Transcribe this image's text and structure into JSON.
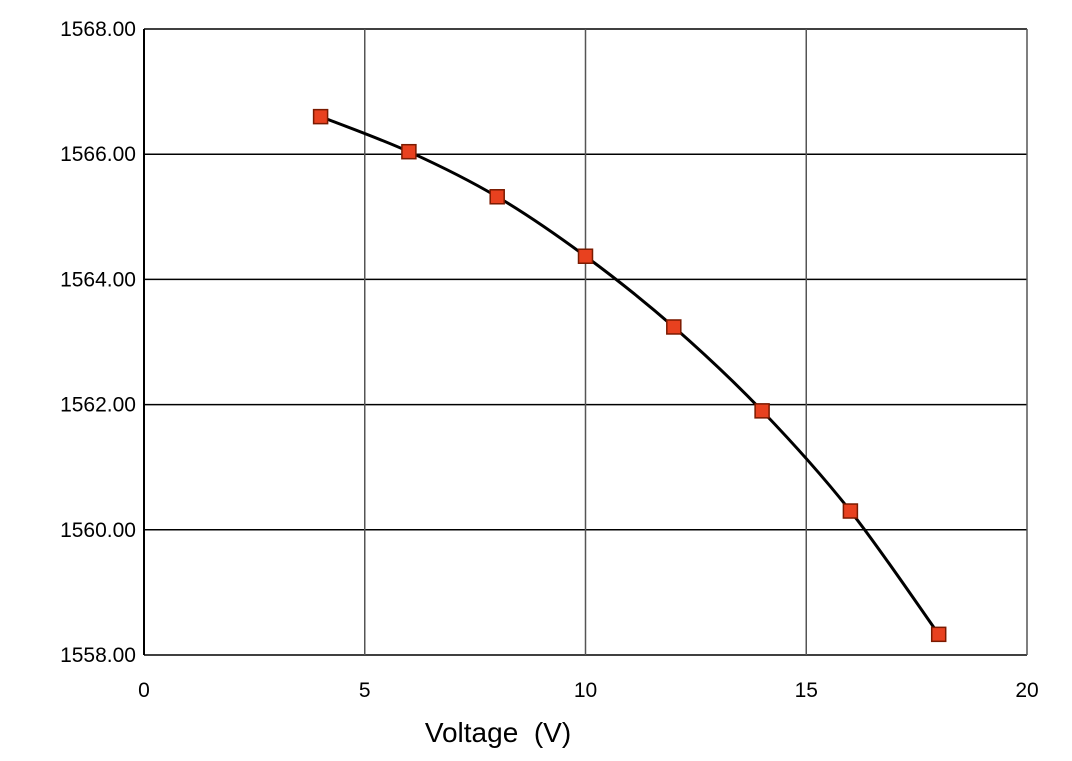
{
  "chart_data": {
    "type": "scatter",
    "title": "",
    "xlabel": "Voltage  (V)",
    "ylabel": "",
    "xlim": [
      0,
      20
    ],
    "ylim": [
      1558,
      1568
    ],
    "x_ticks": [
      0,
      5,
      10,
      15,
      20
    ],
    "y_ticks": [
      1558,
      1560,
      1562,
      1564,
      1566,
      1568
    ],
    "x_tick_labels": [
      "0",
      "5",
      "10",
      "15",
      "20"
    ],
    "y_tick_labels": [
      "1558.00",
      "1560.00",
      "1562.00",
      "1564.00",
      "1566.00",
      "1568.00"
    ],
    "grid": true,
    "series": [
      {
        "marker": "square",
        "marker_color": "#e8411f",
        "marker_edge": "#7a1a00",
        "line": "smooth-fit",
        "line_color": "#000000",
        "points": [
          {
            "x": 4,
            "y": 1566.6
          },
          {
            "x": 6,
            "y": 1566.04
          },
          {
            "x": 8,
            "y": 1565.32
          },
          {
            "x": 10,
            "y": 1564.37
          },
          {
            "x": 12,
            "y": 1563.24
          },
          {
            "x": 14,
            "y": 1561.9
          },
          {
            "x": 16,
            "y": 1560.3
          },
          {
            "x": 18,
            "y": 1558.33
          }
        ]
      }
    ]
  }
}
